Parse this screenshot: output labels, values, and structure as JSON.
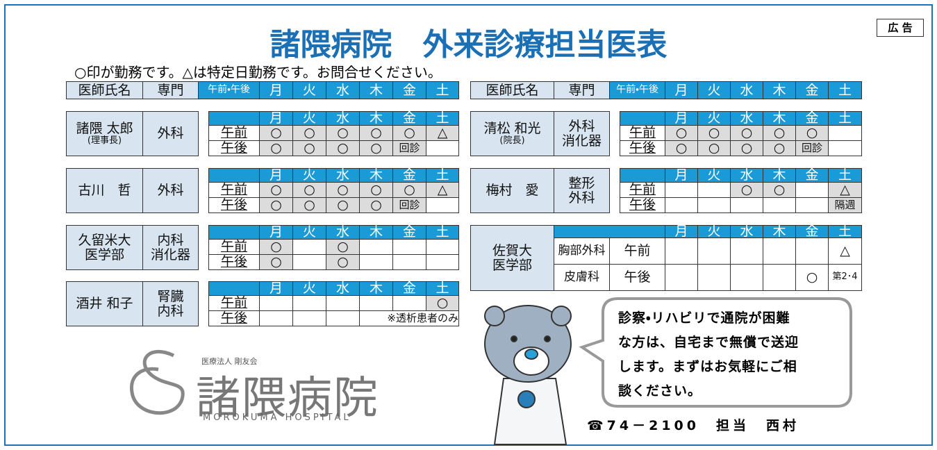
{
  "ad_label": "広 告",
  "title": "諸隈病院　外来診療担当医表",
  "note": "○印が勤務です。△は特定日勤務です。お問合せください。",
  "header": [
    "医師氏名",
    "専門",
    "午前・午後",
    "月",
    "火",
    "水",
    "木",
    "金",
    "土"
  ],
  "time_labels": [
    "午前",
    "午後"
  ],
  "left_doctors": [
    {
      "name": "諸隈 太郎",
      "role": "(理事長)",
      "specialty": "外科",
      "am": [
        "○",
        "○",
        "○",
        "○",
        "○",
        "△"
      ],
      "pm": [
        "○",
        "○",
        "○",
        "○",
        "回診",
        ""
      ]
    },
    {
      "name": "古川　哲",
      "specialty": "外科",
      "am": [
        "○",
        "○",
        "○",
        "○",
        "○",
        "△"
      ],
      "pm": [
        "○",
        "○",
        "○",
        "○",
        "回診",
        ""
      ]
    },
    {
      "name": "久留米大\n医学部",
      "specialty": "内科\n消化器",
      "am": [
        "○",
        "",
        "○",
        "",
        "",
        ""
      ],
      "pm": [
        "○",
        "",
        "○",
        "",
        "",
        ""
      ]
    },
    {
      "name": "酒井 和子",
      "specialty": "腎臓\n内科",
      "am": [
        "",
        "",
        "",
        "",
        "",
        "○"
      ],
      "pm": [
        "",
        "",
        "",
        "※透析患者のみ"
      ]
    }
  ],
  "right_doctors": [
    {
      "name": "清松 和光",
      "role": "(院長)",
      "specialty": "外科\n消化器",
      "am": [
        "○",
        "○",
        "○",
        "○",
        "○",
        ""
      ],
      "pm": [
        "○",
        "○",
        "○",
        "○",
        "回診",
        ""
      ]
    },
    {
      "name": "梅村　愛",
      "specialty": "整形\n外科",
      "am": [
        "",
        "",
        "○",
        "○",
        "",
        "△"
      ],
      "pm": [
        "",
        "",
        "",
        "",
        "",
        "隔週"
      ]
    }
  ],
  "university": {
    "name": "佐賀大\n医学部",
    "rows": [
      {
        "department": "胸部外科",
        "time": "午前",
        "days": [
          "",
          "",
          "",
          "",
          "",
          "△"
        ]
      },
      {
        "department": "皮膚科",
        "time": "午後",
        "days": [
          "",
          "",
          "",
          "",
          "○",
          "第2･4"
        ]
      }
    ]
  },
  "message": "診察・リハビリで通院が困難\nな方は、自宅まで無償で送迎\nします。まずはお気軽にご相\n談ください。",
  "contact": "☎74－2100　担当　西村",
  "logo": {
    "corporation": "医療法人 剛友会",
    "name": "諸隈病院",
    "english": "MOROKUMA HOSPITAL"
  }
}
